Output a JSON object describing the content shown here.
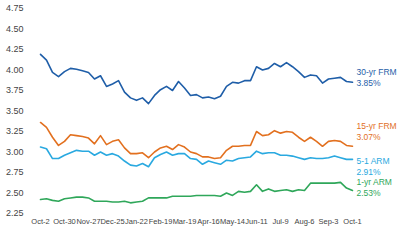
{
  "chart_data": {
    "type": "line",
    "categories": [
      "Oct-2",
      null,
      null,
      null,
      "Oct-30",
      null,
      null,
      null,
      "Nov-27",
      null,
      null,
      null,
      "Dec-25",
      null,
      null,
      null,
      "Jan-22",
      null,
      null,
      null,
      "Feb-19",
      null,
      null,
      null,
      "Mar-19",
      null,
      null,
      null,
      "Apr-16",
      null,
      null,
      null,
      "May-14",
      null,
      null,
      null,
      "Jun-11",
      null,
      null,
      null,
      "Jul-9",
      null,
      null,
      null,
      "Aug-6",
      null,
      null,
      null,
      "Sep-3",
      null,
      null,
      null,
      "Oct-1"
    ],
    "ylim": [
      2.25,
      4.75
    ],
    "yticks": [
      2.25,
      {
        "value": 2.5,
        "label": "2.50"
      },
      2.75,
      {
        "value": 3,
        "label": "3.00"
      },
      3.25,
      {
        "value": 3.5,
        "label": "3.50"
      },
      3.75,
      {
        "value": 4,
        "label": "4.00"
      },
      4.25,
      {
        "value": 4.5,
        "label": "4.50"
      },
      4.75
    ],
    "grid": false,
    "series": [
      {
        "name": "30-yr FRM",
        "color": "#1f5ea8",
        "values": [
          4.19,
          4.12,
          3.97,
          3.92,
          3.98,
          4.02,
          4.01,
          3.99,
          3.97,
          3.89,
          3.93,
          3.8,
          3.83,
          3.87,
          3.73,
          3.66,
          3.63,
          3.66,
          3.59,
          3.69,
          3.76,
          3.8,
          3.75,
          3.86,
          3.78,
          3.69,
          3.7,
          3.66,
          3.67,
          3.65,
          3.68,
          3.8,
          3.85,
          3.84,
          3.87,
          3.87,
          4.04,
          4.0,
          4.02,
          4.08,
          4.04,
          4.09,
          4.04,
          3.98,
          3.91,
          3.94,
          3.93,
          3.84,
          3.89,
          3.9,
          3.91,
          3.86,
          3.85
        ],
        "value_labels": [
          null,
          null,
          null,
          null,
          null,
          null,
          null,
          null,
          null,
          null,
          null,
          null,
          null,
          null,
          null,
          null,
          null,
          null,
          null,
          null,
          null,
          null,
          null,
          null,
          null,
          null,
          null,
          null,
          null,
          null,
          null,
          null,
          null,
          null,
          null,
          null,
          null,
          null,
          null,
          null,
          null,
          null,
          null,
          null,
          null,
          null,
          null,
          null,
          null,
          null,
          null,
          null,
          "3.85%"
        ]
      },
      {
        "name": "15-yr FRM",
        "color": "#e2701f",
        "values": [
          3.36,
          3.3,
          3.18,
          3.08,
          3.13,
          3.21,
          3.2,
          3.19,
          3.17,
          3.1,
          3.2,
          3.09,
          3.13,
          3.15,
          3.05,
          2.98,
          2.98,
          2.99,
          2.93,
          3.0,
          3.05,
          3.07,
          3.03,
          3.09,
          3.06,
          3.0,
          2.98,
          2.94,
          2.94,
          2.92,
          2.93,
          3.02,
          3.07,
          3.07,
          3.08,
          3.08,
          3.25,
          3.2,
          3.21,
          3.26,
          3.23,
          3.25,
          3.24,
          3.18,
          3.13,
          3.18,
          3.13,
          3.07,
          3.13,
          3.14,
          3.13,
          3.08,
          3.07
        ],
        "value_labels": [
          null,
          null,
          null,
          null,
          null,
          null,
          null,
          null,
          null,
          null,
          null,
          null,
          null,
          null,
          null,
          null,
          null,
          null,
          null,
          null,
          null,
          null,
          null,
          null,
          null,
          null,
          null,
          null,
          null,
          null,
          null,
          null,
          null,
          null,
          null,
          null,
          null,
          null,
          null,
          null,
          null,
          null,
          null,
          null,
          null,
          null,
          null,
          null,
          null,
          null,
          null,
          null,
          "3.07%"
        ]
      },
      {
        "name": "5-1 ARM",
        "color": "#2aa9e0",
        "values": [
          3.06,
          3.04,
          2.92,
          2.92,
          2.96,
          2.99,
          3.02,
          3.01,
          3.01,
          2.96,
          3.0,
          2.96,
          2.98,
          2.95,
          2.89,
          2.84,
          2.83,
          2.86,
          2.82,
          2.93,
          2.97,
          3.0,
          2.96,
          2.98,
          2.98,
          2.92,
          2.91,
          2.85,
          2.89,
          2.87,
          2.85,
          2.9,
          2.89,
          2.92,
          2.93,
          2.94,
          3.01,
          2.98,
          2.99,
          2.99,
          2.96,
          2.96,
          2.95,
          2.93,
          2.91,
          2.93,
          2.92,
          2.92,
          2.93,
          2.95,
          2.93,
          2.91,
          2.91
        ],
        "value_labels": [
          null,
          null,
          null,
          null,
          null,
          null,
          null,
          null,
          null,
          null,
          null,
          null,
          null,
          null,
          null,
          null,
          null,
          null,
          null,
          null,
          null,
          null,
          null,
          null,
          null,
          null,
          null,
          null,
          null,
          null,
          null,
          null,
          null,
          null,
          null,
          null,
          null,
          null,
          null,
          null,
          null,
          null,
          null,
          null,
          null,
          null,
          null,
          null,
          null,
          null,
          null,
          null,
          "2.91%"
        ]
      },
      {
        "name": "1-yr ARM",
        "color": "#2fa75a",
        "values": [
          2.42,
          2.43,
          2.41,
          2.4,
          2.43,
          2.44,
          2.45,
          2.45,
          2.44,
          2.4,
          2.4,
          2.4,
          2.39,
          2.39,
          2.4,
          2.38,
          2.39,
          2.4,
          2.44,
          2.44,
          2.44,
          2.44,
          2.46,
          2.46,
          2.46,
          2.46,
          2.47,
          2.47,
          2.47,
          2.47,
          2.46,
          2.5,
          2.47,
          2.52,
          2.51,
          2.52,
          2.6,
          2.52,
          2.55,
          2.52,
          2.53,
          2.54,
          2.52,
          2.54,
          2.53,
          2.62,
          2.62,
          2.62,
          2.62,
          2.62,
          2.63,
          2.56,
          2.53
        ],
        "value_labels": [
          null,
          null,
          null,
          null,
          null,
          null,
          null,
          null,
          null,
          null,
          null,
          null,
          null,
          null,
          null,
          null,
          null,
          null,
          null,
          null,
          null,
          null,
          null,
          null,
          null,
          null,
          null,
          null,
          null,
          null,
          null,
          null,
          null,
          null,
          null,
          null,
          null,
          null,
          null,
          null,
          null,
          null,
          null,
          null,
          null,
          null,
          null,
          null,
          null,
          null,
          null,
          null,
          "2.53%"
        ]
      }
    ]
  }
}
